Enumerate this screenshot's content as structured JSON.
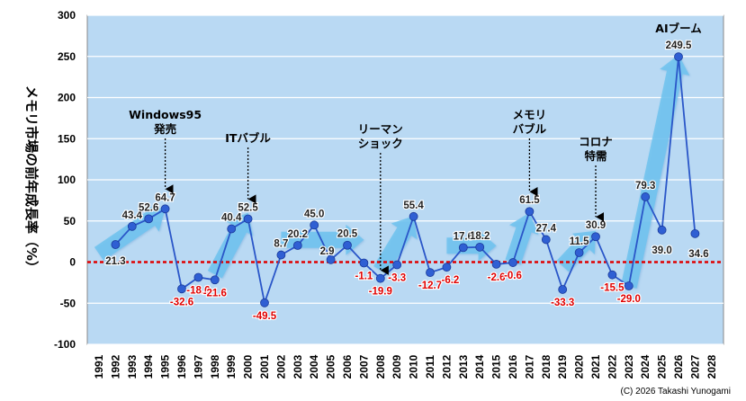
{
  "chart_data": {
    "type": "line",
    "title": "",
    "ylabel": "メモリ市場の前年成長率（%）",
    "xlabel": "",
    "ylim": [
      -100,
      300
    ],
    "yticks": [
      -100,
      -50,
      0,
      50,
      100,
      150,
      200,
      250,
      300
    ],
    "grid": true,
    "x": [
      "1991",
      "1992",
      "1993",
      "1994",
      "1995",
      "1996",
      "1997",
      "1998",
      "1999",
      "2000",
      "2001",
      "2002",
      "2003",
      "2004",
      "2005",
      "2006",
      "2007",
      "2008",
      "2009",
      "2010",
      "2011",
      "2012",
      "2013",
      "2014",
      "2015",
      "2016",
      "2017",
      "2018",
      "2019",
      "2020",
      "2021",
      "2022",
      "2023",
      "2024",
      "2025",
      "2026",
      "2027",
      "2028"
    ],
    "points": [
      {
        "x": "1992",
        "y": 21.3,
        "label": "21.3"
      },
      {
        "x": "1993",
        "y": 43.4,
        "label": "43.4"
      },
      {
        "x": "1994",
        "y": 52.6,
        "label": "52.6"
      },
      {
        "x": "1995",
        "y": 64.7,
        "label": "64.7"
      },
      {
        "x": "1996",
        "y": -32.6,
        "label": "-32.6"
      },
      {
        "x": "1997",
        "y": -18.6,
        "label": "-18.6"
      },
      {
        "x": "1998",
        "y": -21.6,
        "label": "-21.6"
      },
      {
        "x": "1999",
        "y": 40.4,
        "label": "40.4"
      },
      {
        "x": "2000",
        "y": 52.5,
        "label": "52.5"
      },
      {
        "x": "2001",
        "y": -49.5,
        "label": "-49.5"
      },
      {
        "x": "2002",
        "y": 8.7,
        "label": "8.7"
      },
      {
        "x": "2003",
        "y": 20.2,
        "label": "20.2"
      },
      {
        "x": "2004",
        "y": 45.0,
        "label": "45.0"
      },
      {
        "x": "2005",
        "y": 2.9,
        "label": "2.9"
      },
      {
        "x": "2006",
        "y": 20.5,
        "label": "20.5"
      },
      {
        "x": "2007",
        "y": -1.1,
        "label": "-1.1"
      },
      {
        "x": "2008",
        "y": -19.9,
        "label": "-19.9"
      },
      {
        "x": "2009",
        "y": -3.3,
        "label": "-3.3"
      },
      {
        "x": "2010",
        "y": 55.4,
        "label": "55.4"
      },
      {
        "x": "2011",
        "y": -12.7,
        "label": "-12.7"
      },
      {
        "x": "2012",
        "y": -6.2,
        "label": "-6.2"
      },
      {
        "x": "2013",
        "y": 17.6,
        "label": "17.6"
      },
      {
        "x": "2014",
        "y": 18.2,
        "label": "18.2"
      },
      {
        "x": "2015",
        "y": -2.6,
        "label": "-2.6"
      },
      {
        "x": "2016",
        "y": -0.6,
        "label": "-0.6"
      },
      {
        "x": "2017",
        "y": 61.5,
        "label": "61.5"
      },
      {
        "x": "2018",
        "y": 27.4,
        "label": "27.4"
      },
      {
        "x": "2019",
        "y": -33.3,
        "label": "-33.3"
      },
      {
        "x": "2020",
        "y": 11.5,
        "label": "11.5"
      },
      {
        "x": "2021",
        "y": 30.9,
        "label": "30.9"
      },
      {
        "x": "2022",
        "y": -15.5,
        "label": "-15.5"
      },
      {
        "x": "2023",
        "y": -29.0,
        "label": "-29.0"
      },
      {
        "x": "2024",
        "y": 79.3,
        "label": "79.3"
      },
      {
        "x": "2025",
        "y": 39.0,
        "label": "39.0"
      },
      {
        "x": "2026",
        "y": 249.5,
        "label": "249.5"
      },
      {
        "x": "2027",
        "y": 34.6,
        "label": "34.6"
      }
    ],
    "annotations": [
      {
        "lines": [
          "Windows95",
          "発売"
        ],
        "x": "1995"
      },
      {
        "lines": [
          "ITバブル"
        ],
        "x": "2000"
      },
      {
        "lines": [
          "リーマン",
          "ショック"
        ],
        "x": "2008"
      },
      {
        "lines": [
          "メモリ",
          "バブル"
        ],
        "x": "2017"
      },
      {
        "lines": [
          "コロナ",
          "特需"
        ],
        "x": "2021"
      },
      {
        "lines": [
          "AIブーム"
        ],
        "x": "2026"
      }
    ],
    "trend_arrows": [
      {
        "from": [
          "1991",
          10
        ],
        "to": [
          "1995",
          64.7
        ]
      },
      {
        "from": [
          "1998",
          -15
        ],
        "to": [
          "2000",
          60
        ]
      },
      {
        "from": [
          "2002",
          27
        ],
        "to": [
          "2007",
          27
        ]
      },
      {
        "from": [
          "2008",
          -10
        ],
        "to": [
          "2010",
          56
        ]
      },
      {
        "from": [
          "2012",
          20
        ],
        "to": [
          "2015",
          20
        ]
      },
      {
        "from": [
          "2016",
          0
        ],
        "to": [
          "2017",
          60
        ]
      },
      {
        "from": [
          "2019",
          -5
        ],
        "to": [
          "2021",
          38
        ]
      },
      {
        "from": [
          "2023",
          -30
        ],
        "to": [
          "2026",
          252
        ]
      }
    ],
    "colors": {
      "plot_bg": "#b9d9f3",
      "line": "#2a56c8",
      "marker": "#2f5fd3",
      "zero_line": "#e00000",
      "positive_label": "#222222",
      "negative_label": "#e00000",
      "arrow": "#6fc3ee"
    }
  },
  "copyright": "(C) 2026 Takashi Yunogami"
}
